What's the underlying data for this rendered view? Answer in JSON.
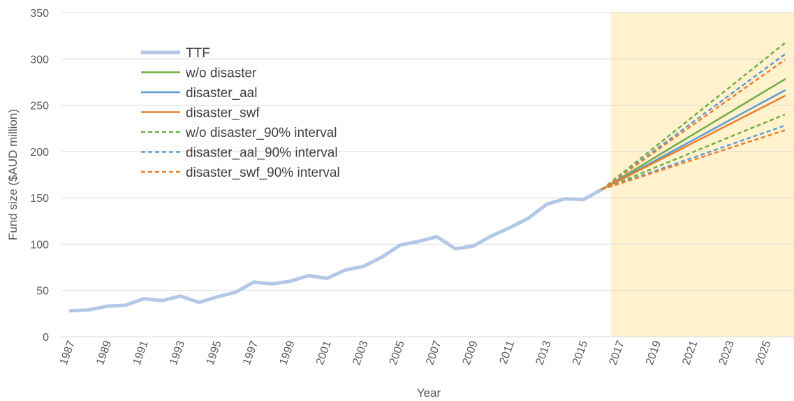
{
  "chart_data": {
    "type": "line",
    "x_label": "Year",
    "y_label": "Fund size ($AUD million)",
    "categories": [
      "1987",
      null,
      "1989",
      null,
      "1991",
      null,
      "1993",
      null,
      "1995",
      null,
      "1997",
      null,
      "1999",
      null,
      "2001",
      null,
      "2003",
      null,
      "2005",
      null,
      "2007",
      null,
      "2009",
      null,
      "2011",
      null,
      "2013",
      null,
      "2015",
      null,
      "2017",
      null,
      "2019",
      null,
      "2021",
      null,
      "2023",
      null,
      "2025",
      null
    ],
    "ylim": [
      0,
      350
    ],
    "yticks": [
      0,
      50,
      100,
      150,
      200,
      250,
      300,
      350
    ],
    "grid": true,
    "series": [
      {
        "type": "bar",
        "color": "#fff2cc",
        "values": [
          null,
          null,
          null,
          null,
          null,
          null,
          null,
          null,
          null,
          null,
          null,
          null,
          null,
          null,
          null,
          null,
          null,
          null,
          null,
          null,
          null,
          null,
          null,
          null,
          null,
          null,
          null,
          null,
          null,
          null,
          350,
          350,
          350,
          350,
          350,
          350,
          350,
          350,
          350,
          350
        ]
      },
      {
        "name": "TTF",
        "color": "#b4c7e7",
        "width": 5,
        "dashed": false,
        "values": [
          28,
          29,
          33,
          34,
          41,
          39,
          44,
          37,
          43,
          48,
          59,
          57,
          60,
          66,
          63,
          72,
          76,
          86,
          99,
          103,
          108,
          95,
          98,
          109,
          118,
          128,
          143,
          149,
          148,
          159,
          null,
          null,
          null,
          null,
          null,
          null,
          null,
          null,
          null,
          null
        ]
      },
      {
        "name": "w/o disaster",
        "color": "#70ad47",
        "width": 2.5,
        "dashed": false,
        "values": [
          null,
          null,
          null,
          null,
          null,
          null,
          null,
          null,
          null,
          null,
          null,
          null,
          null,
          null,
          null,
          null,
          null,
          null,
          null,
          null,
          null,
          null,
          null,
          null,
          null,
          null,
          null,
          null,
          null,
          159,
          170.9,
          182.8,
          194.7,
          206.6,
          218.5,
          230.4,
          242.3,
          254.2,
          266.1,
          278
        ]
      },
      {
        "name": "disaster_aal",
        "color": "#5b9bd5",
        "width": 2.5,
        "dashed": false,
        "values": [
          null,
          null,
          null,
          null,
          null,
          null,
          null,
          null,
          null,
          null,
          null,
          null,
          null,
          null,
          null,
          null,
          null,
          null,
          null,
          null,
          null,
          null,
          null,
          null,
          null,
          null,
          null,
          null,
          null,
          159,
          169.7,
          180.4,
          191.1,
          201.8,
          212.5,
          223.2,
          233.9,
          244.6,
          255.3,
          266
        ]
      },
      {
        "name": "disaster_swf",
        "color": "#ed7d31",
        "width": 2.5,
        "dashed": false,
        "values": [
          null,
          null,
          null,
          null,
          null,
          null,
          null,
          null,
          null,
          null,
          null,
          null,
          null,
          null,
          null,
          null,
          null,
          null,
          null,
          null,
          null,
          null,
          null,
          null,
          null,
          null,
          null,
          null,
          null,
          159,
          169.1,
          179.2,
          189.3,
          199.4,
          209.5,
          219.6,
          229.7,
          239.8,
          249.9,
          260
        ]
      },
      {
        "name": "w/o disaster_90% interval",
        "color": "#70ad47",
        "width": 2.5,
        "dashed": true,
        "values": [
          null,
          null,
          null,
          null,
          null,
          null,
          null,
          null,
          null,
          null,
          null,
          null,
          null,
          null,
          null,
          null,
          null,
          null,
          null,
          null,
          null,
          null,
          null,
          null,
          null,
          null,
          null,
          null,
          null,
          159,
          174.8,
          190.6,
          206.4,
          222.2,
          238,
          253.8,
          269.6,
          285.4,
          301.2,
          317
        ]
      },
      {
        "name": "disaster_aal_90% interval",
        "color": "#5b9bd5",
        "width": 2.5,
        "dashed": true,
        "values": [
          null,
          null,
          null,
          null,
          null,
          null,
          null,
          null,
          null,
          null,
          null,
          null,
          null,
          null,
          null,
          null,
          null,
          null,
          null,
          null,
          null,
          null,
          null,
          null,
          null,
          null,
          null,
          null,
          null,
          159,
          173.6,
          188.2,
          202.8,
          217.4,
          232,
          246.6,
          261.2,
          275.8,
          290.4,
          305
        ]
      },
      {
        "name": "disaster_swf_90% interval",
        "color": "#ed7d31",
        "width": 2.5,
        "dashed": true,
        "values": [
          null,
          null,
          null,
          null,
          null,
          null,
          null,
          null,
          null,
          null,
          null,
          null,
          null,
          null,
          null,
          null,
          null,
          null,
          null,
          null,
          null,
          null,
          null,
          null,
          null,
          null,
          null,
          null,
          null,
          159,
          173,
          187,
          201,
          215,
          229,
          243,
          257,
          271,
          285,
          299
        ]
      },
      {
        "name": "w/o disaster_90% interval",
        "color": "#70ad47",
        "width": 2.5,
        "dashed": true,
        "values": [
          null,
          null,
          null,
          null,
          null,
          null,
          null,
          null,
          null,
          null,
          null,
          null,
          null,
          null,
          null,
          null,
          null,
          null,
          null,
          null,
          null,
          null,
          null,
          null,
          null,
          null,
          null,
          null,
          null,
          159,
          167.1,
          175.2,
          183.3,
          191.4,
          199.5,
          207.6,
          215.7,
          223.8,
          231.9,
          240
        ]
      },
      {
        "name": "disaster_aal_90% interval",
        "color": "#5b9bd5",
        "width": 2.5,
        "dashed": true,
        "values": [
          null,
          null,
          null,
          null,
          null,
          null,
          null,
          null,
          null,
          null,
          null,
          null,
          null,
          null,
          null,
          null,
          null,
          null,
          null,
          null,
          null,
          null,
          null,
          null,
          null,
          null,
          null,
          null,
          null,
          159,
          165.9,
          172.8,
          179.7,
          186.6,
          193.5,
          200.4,
          207.3,
          214.2,
          221.1,
          228
        ]
      },
      {
        "name": "disaster_swf_90% interval",
        "color": "#ed7d31",
        "width": 2.5,
        "dashed": true,
        "values": [
          null,
          null,
          null,
          null,
          null,
          null,
          null,
          null,
          null,
          null,
          null,
          null,
          null,
          null,
          null,
          null,
          null,
          null,
          null,
          null,
          null,
          null,
          null,
          null,
          null,
          null,
          null,
          null,
          null,
          159,
          165.4,
          171.8,
          178.2,
          184.6,
          191,
          197.4,
          203.8,
          210.2,
          216.6,
          223
        ]
      }
    ]
  }
}
